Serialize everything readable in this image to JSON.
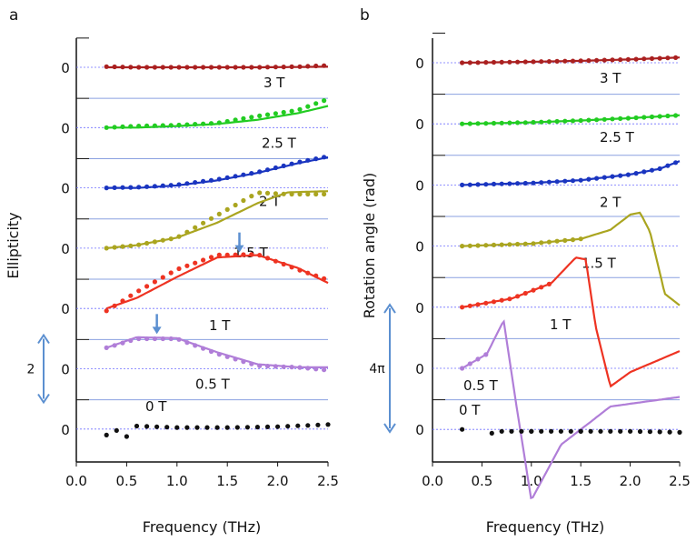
{
  "chart_data": [
    {
      "panel_label": "a",
      "type": "line",
      "xlabel": "Frequency (THz)",
      "ylabel": "Ellipticity",
      "xlim": [
        0.0,
        2.5
      ],
      "x_ticks": [
        "0.0",
        "0.5",
        "1.0",
        "1.5",
        "2.0",
        "2.5"
      ],
      "stacked_offset_labels": "0",
      "scale_bar": {
        "label": "2",
        "value": 2
      },
      "arrows": [
        {
          "x": 1.62,
          "series": "1 T"
        },
        {
          "x": 0.8,
          "series": "0.5 T"
        }
      ],
      "series": [
        {
          "name": "3 T",
          "color": "#aa2020",
          "x": [
            0.3,
            0.6,
            1.0,
            1.4,
            1.8,
            2.2,
            2.5
          ],
          "fit": [
            0.0,
            0.0,
            0.0,
            0.0,
            0.0,
            0.01,
            0.02
          ],
          "points": [
            0.02,
            0.0,
            0.0,
            0.0,
            0.0,
            0.02,
            0.06
          ]
        },
        {
          "name": "2.5 T",
          "color": "#22cc22",
          "x": [
            0.3,
            0.6,
            1.0,
            1.4,
            1.8,
            2.2,
            2.5
          ],
          "fit": [
            0.0,
            0.0,
            0.05,
            0.12,
            0.26,
            0.48,
            0.72
          ],
          "points": [
            0.0,
            0.05,
            0.08,
            0.15,
            0.38,
            0.58,
            0.95
          ]
        },
        {
          "name": "2 T",
          "color": "#1a35c0",
          "x": [
            0.3,
            0.6,
            1.0,
            1.4,
            1.8,
            2.2,
            2.5
          ],
          "fit": [
            0.0,
            0.0,
            0.08,
            0.25,
            0.5,
            0.82,
            1.02
          ],
          "points": [
            0.0,
            0.02,
            0.1,
            0.28,
            0.52,
            0.85,
            1.05
          ]
        },
        {
          "name": "1.5 T",
          "color": "#aaa520",
          "x": [
            0.3,
            0.6,
            1.0,
            1.4,
            1.8,
            2.1,
            2.5
          ],
          "fit": [
            0.0,
            0.1,
            0.35,
            0.85,
            1.5,
            1.86,
            1.9
          ],
          "points": [
            0.0,
            0.1,
            0.35,
            1.1,
            1.85,
            1.8,
            1.8
          ]
        },
        {
          "name": "1 T",
          "color": "#ee3322",
          "x": [
            0.3,
            0.6,
            1.0,
            1.4,
            1.8,
            2.2,
            2.5
          ],
          "fit": [
            0.0,
            0.35,
            1.05,
            1.7,
            1.78,
            1.35,
            0.85
          ],
          "points": [
            -0.08,
            0.55,
            1.3,
            1.78,
            1.8,
            1.3,
            0.95
          ]
        },
        {
          "name": "0.5 T",
          "color": "#b07ed8",
          "x": [
            0.3,
            0.6,
            1.0,
            1.4,
            1.8,
            2.2,
            2.5
          ],
          "fit": [
            0.7,
            1.05,
            1.02,
            0.55,
            0.15,
            0.05,
            0.05
          ],
          "points": [
            0.7,
            1.0,
            1.0,
            0.5,
            0.1,
            0.05,
            -0.05
          ]
        },
        {
          "name": "0 T",
          "color": "#111111",
          "x": [
            0.3,
            0.4,
            0.5,
            0.6,
            1.0,
            1.5,
            2.0,
            2.5
          ],
          "fit": [],
          "points": [
            -0.2,
            -0.05,
            -0.25,
            0.1,
            0.05,
            0.05,
            0.08,
            0.15
          ]
        }
      ]
    },
    {
      "panel_label": "b",
      "type": "line",
      "xlabel": "Frequency (THz)",
      "ylabel": "Rotation angle (rad)",
      "xlim": [
        0.0,
        2.5
      ],
      "x_ticks": [
        "0.0",
        "0.5",
        "1.0",
        "1.5",
        "2.0",
        "2.5"
      ],
      "stacked_offset_labels": "0",
      "scale_bar": {
        "label": "4π",
        "value": 12.566
      },
      "series": [
        {
          "name": "3 T",
          "color": "#aa2020",
          "x": [
            0.3,
            1.0,
            1.5,
            2.0,
            2.5
          ],
          "fit": [
            0.0,
            0.1,
            0.2,
            0.35,
            0.55
          ],
          "points": [
            0.0,
            0.1,
            0.2,
            0.35,
            0.55
          ]
        },
        {
          "name": "2.5 T",
          "color": "#22cc22",
          "x": [
            0.3,
            1.0,
            1.5,
            2.0,
            2.5
          ],
          "fit": [
            0.0,
            0.15,
            0.35,
            0.6,
            0.9
          ],
          "points": [
            0.0,
            0.15,
            0.35,
            0.6,
            0.9
          ]
        },
        {
          "name": "2 T",
          "color": "#1a35c0",
          "x": [
            0.3,
            1.0,
            1.5,
            2.0,
            2.3,
            2.5
          ],
          "fit": [
            0.0,
            0.2,
            0.5,
            1.1,
            1.7,
            2.5
          ],
          "points": [
            0.0,
            0.2,
            0.5,
            1.1,
            1.7,
            2.5
          ]
        },
        {
          "name": "1.5 T",
          "color": "#aaa520",
          "x": [
            0.3,
            1.0,
            1.5,
            1.8,
            2.0,
            2.1,
            2.2,
            2.35,
            2.5
          ],
          "fit": [
            0.0,
            0.25,
            0.75,
            1.7,
            3.3,
            3.5,
            1.5,
            -5.0,
            -6.2
          ],
          "points": [
            0.0,
            0.25,
            0.75
          ]
        },
        {
          "name": "1 T",
          "color": "#ee3322",
          "x": [
            0.3,
            0.8,
            1.2,
            1.45,
            1.55,
            1.65,
            1.8,
            2.0,
            2.5
          ],
          "fit": [
            0.0,
            0.9,
            2.5,
            5.2,
            5.0,
            -2.0,
            -8.3,
            -6.8,
            -4.6
          ],
          "points": [
            0.0,
            0.9,
            2.5
          ]
        },
        {
          "name": "0.5 T",
          "color": "#b07ed8",
          "x": [
            0.3,
            0.55,
            0.72,
            0.85,
            1.0,
            1.3,
            1.8,
            2.5
          ],
          "fit": [
            0.0,
            1.5,
            5.0,
            -4.0,
            -13.8,
            -8.0,
            -4.0,
            -3.0
          ],
          "points": [
            0.0,
            1.5
          ]
        },
        {
          "name": "0 T",
          "color": "#111111",
          "x": [
            0.3,
            0.6,
            1.0,
            1.5,
            2.0,
            2.5
          ],
          "fit": [],
          "points": [
            0.0,
            -0.4,
            -0.2,
            -0.2,
            -0.2,
            -0.3
          ]
        }
      ]
    }
  ]
}
